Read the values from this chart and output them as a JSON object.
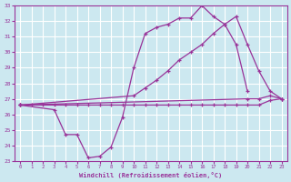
{
  "background_color": "#cce8f0",
  "grid_color": "#ffffff",
  "line_color": "#993399",
  "marker": "+",
  "xlabel": "Windchill (Refroidissement éolien,°C)",
  "xlim": [
    -0.5,
    23.5
  ],
  "ylim": [
    23,
    33
  ],
  "yticks": [
    23,
    24,
    25,
    26,
    27,
    28,
    29,
    30,
    31,
    32,
    33
  ],
  "xticks": [
    0,
    1,
    2,
    3,
    4,
    5,
    6,
    7,
    8,
    9,
    10,
    11,
    12,
    13,
    14,
    15,
    16,
    17,
    18,
    19,
    20,
    21,
    22,
    23
  ],
  "line1_x": [
    0,
    1,
    2,
    3,
    4,
    5,
    6,
    7,
    8,
    9,
    10,
    11,
    12,
    13,
    14,
    15,
    16,
    17,
    18,
    19,
    20,
    21,
    22,
    23
  ],
  "line1_y": [
    26.6,
    26.6,
    26.6,
    26.6,
    26.6,
    26.6,
    26.6,
    26.6,
    26.6,
    26.6,
    26.6,
    26.6,
    26.6,
    26.6,
    26.6,
    26.6,
    26.6,
    26.6,
    26.6,
    26.6,
    26.6,
    26.6,
    26.9,
    27.0
  ],
  "line2_x": [
    0,
    3,
    4,
    5,
    6,
    7,
    8,
    9,
    10,
    11,
    12,
    13,
    14,
    15,
    16,
    17,
    18,
    19,
    20
  ],
  "line2_y": [
    26.6,
    26.3,
    24.7,
    24.7,
    23.2,
    23.3,
    23.9,
    25.8,
    29.0,
    31.2,
    31.6,
    31.8,
    32.2,
    32.2,
    33.0,
    32.3,
    31.8,
    30.5,
    27.5
  ],
  "line3_x": [
    0,
    10,
    11,
    12,
    13,
    14,
    15,
    16,
    17,
    18,
    19,
    20,
    21,
    22,
    23
  ],
  "line3_y": [
    26.6,
    27.2,
    27.7,
    28.2,
    28.8,
    29.5,
    30.0,
    30.5,
    31.2,
    31.8,
    32.3,
    30.5,
    28.8,
    27.5,
    27.0
  ],
  "line4_x": [
    0,
    20,
    21,
    22,
    23
  ],
  "line4_y": [
    26.6,
    27.0,
    27.0,
    27.2,
    27.0
  ]
}
